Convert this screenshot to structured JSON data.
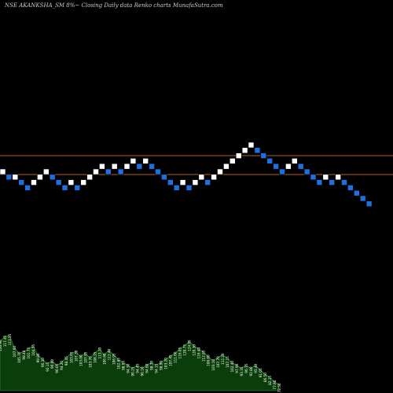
{
  "colors": {
    "background": "#000000",
    "up_brick": "#ffffff",
    "down_brick": "#1e6fe0",
    "reference_line": "#b5651d",
    "volume_fill": "#0b3d0b",
    "volume_stroke": "#33aa33",
    "label_text": "#ffffff"
  },
  "chart_data": {
    "type": "renko",
    "title": "NSE AKANKSHA_SM 8%~  Closing Daily data  Renko  charts MunafaSutra.com",
    "xlabel": "",
    "ylabel": "",
    "grid": false,
    "reference_lines": [
      1.0,
      0.0
    ],
    "bricks": [
      {
        "level": 0,
        "dir": "up"
      },
      {
        "level": -1,
        "dir": "down"
      },
      {
        "level": -1,
        "dir": "up"
      },
      {
        "level": -2,
        "dir": "down"
      },
      {
        "level": -3,
        "dir": "down"
      },
      {
        "level": -2,
        "dir": "up"
      },
      {
        "level": -1,
        "dir": "up"
      },
      {
        "level": 0,
        "dir": "up"
      },
      {
        "level": -1,
        "dir": "down"
      },
      {
        "level": -2,
        "dir": "down"
      },
      {
        "level": -3,
        "dir": "down"
      },
      {
        "level": -2,
        "dir": "up"
      },
      {
        "level": -3,
        "dir": "down"
      },
      {
        "level": -2,
        "dir": "up"
      },
      {
        "level": -1,
        "dir": "up"
      },
      {
        "level": 0,
        "dir": "up"
      },
      {
        "level": 1,
        "dir": "up"
      },
      {
        "level": 0,
        "dir": "down"
      },
      {
        "level": 1,
        "dir": "up"
      },
      {
        "level": 0,
        "dir": "down"
      },
      {
        "level": 1,
        "dir": "up"
      },
      {
        "level": 2,
        "dir": "up"
      },
      {
        "level": 1,
        "dir": "down"
      },
      {
        "level": 2,
        "dir": "up"
      },
      {
        "level": 1,
        "dir": "down"
      },
      {
        "level": 0,
        "dir": "down"
      },
      {
        "level": -1,
        "dir": "down"
      },
      {
        "level": -2,
        "dir": "down"
      },
      {
        "level": -3,
        "dir": "down"
      },
      {
        "level": -2,
        "dir": "up"
      },
      {
        "level": -3,
        "dir": "down"
      },
      {
        "level": -2,
        "dir": "up"
      },
      {
        "level": -1,
        "dir": "up"
      },
      {
        "level": -2,
        "dir": "down"
      },
      {
        "level": -1,
        "dir": "up"
      },
      {
        "level": 0,
        "dir": "up"
      },
      {
        "level": 1,
        "dir": "up"
      },
      {
        "level": 2,
        "dir": "up"
      },
      {
        "level": 3,
        "dir": "up"
      },
      {
        "level": 4,
        "dir": "up"
      },
      {
        "level": 5,
        "dir": "up"
      },
      {
        "level": 4,
        "dir": "down"
      },
      {
        "level": 3,
        "dir": "down"
      },
      {
        "level": 2,
        "dir": "down"
      },
      {
        "level": 1,
        "dir": "down"
      },
      {
        "level": 0,
        "dir": "down"
      },
      {
        "level": 1,
        "dir": "up"
      },
      {
        "level": 2,
        "dir": "up"
      },
      {
        "level": 1,
        "dir": "down"
      },
      {
        "level": 0,
        "dir": "down"
      },
      {
        "level": -1,
        "dir": "down"
      },
      {
        "level": -2,
        "dir": "down"
      },
      {
        "level": -1,
        "dir": "up"
      },
      {
        "level": -2,
        "dir": "down"
      },
      {
        "level": -1,
        "dir": "up"
      },
      {
        "level": -2,
        "dir": "down"
      },
      {
        "level": -3,
        "dir": "down"
      },
      {
        "level": -4,
        "dir": "down"
      },
      {
        "level": -5,
        "dir": "down"
      },
      {
        "level": -6,
        "dir": "down"
      }
    ],
    "volume": [
      {
        "value": 0.66,
        "label": "120.90"
      },
      {
        "value": 0.72,
        "label": "117.45"
      },
      {
        "value": 0.74,
        "label": "113.55"
      },
      {
        "value": 0.58,
        "label": "107.60"
      },
      {
        "value": 0.5,
        "label": "105.70"
      },
      {
        "value": 0.52,
        "label": "98.40"
      },
      {
        "value": 0.56,
        "label": "101.75"
      },
      {
        "value": 0.6,
        "label": "104.55"
      },
      {
        "value": 0.48,
        "label": "99.80"
      },
      {
        "value": 0.42,
        "label": "96.30"
      },
      {
        "value": 0.36,
        "label": "92.15"
      },
      {
        "value": 0.4,
        "label": "96.00"
      },
      {
        "value": 0.34,
        "label": "90.05"
      },
      {
        "value": 0.38,
        "label": "94.20"
      },
      {
        "value": 0.44,
        "label": "98.45"
      },
      {
        "value": 0.5,
        "label": "103.65"
      },
      {
        "value": 0.52,
        "label": "107.30"
      },
      {
        "value": 0.46,
        "label": "103.00"
      },
      {
        "value": 0.5,
        "label": "107.95"
      },
      {
        "value": 0.44,
        "label": "103.70"
      },
      {
        "value": 0.5,
        "label": "108.25"
      },
      {
        "value": 0.56,
        "label": "113.10"
      },
      {
        "value": 0.48,
        "label": "106.80"
      },
      {
        "value": 0.54,
        "label": "112.40"
      },
      {
        "value": 0.48,
        "label": "106.95"
      },
      {
        "value": 0.42,
        "label": "102.85"
      },
      {
        "value": 0.38,
        "label": "98.65"
      },
      {
        "value": 0.34,
        "label": "94.30"
      },
      {
        "value": 0.3,
        "label": "90.25"
      },
      {
        "value": 0.34,
        "label": "94.45"
      },
      {
        "value": 0.3,
        "label": "90.10"
      },
      {
        "value": 0.34,
        "label": "94.60"
      },
      {
        "value": 0.38,
        "label": "98.70"
      },
      {
        "value": 0.34,
        "label": "94.15"
      },
      {
        "value": 0.38,
        "label": "98.90"
      },
      {
        "value": 0.42,
        "label": "103.20"
      },
      {
        "value": 0.46,
        "label": "107.45"
      },
      {
        "value": 0.5,
        "label": "111.60"
      },
      {
        "value": 0.56,
        "label": "116.05"
      },
      {
        "value": 0.6,
        "label": "120.75"
      },
      {
        "value": 0.66,
        "label": "124.95"
      },
      {
        "value": 0.6,
        "label": "120.30"
      },
      {
        "value": 0.56,
        "label": "116.40"
      },
      {
        "value": 0.52,
        "label": "112.85"
      },
      {
        "value": 0.46,
        "label": "108.00"
      },
      {
        "value": 0.4,
        "label": "103.10"
      },
      {
        "value": 0.44,
        "label": "107.70"
      },
      {
        "value": 0.48,
        "label": "112.20"
      },
      {
        "value": 0.44,
        "label": "107.15"
      },
      {
        "value": 0.38,
        "label": "102.40"
      },
      {
        "value": 0.34,
        "label": "97.90"
      },
      {
        "value": 0.3,
        "label": "93.35"
      },
      {
        "value": 0.34,
        "label": "96.75"
      },
      {
        "value": 0.3,
        "label": "92.80"
      },
      {
        "value": 0.34,
        "label": "95.40"
      },
      {
        "value": 0.28,
        "label": "91.05"
      },
      {
        "value": 0.22,
        "label": "86.50"
      },
      {
        "value": 0.18,
        "label": "82.15"
      },
      {
        "value": 0.12,
        "label": "77.90"
      },
      {
        "value": 0.08,
        "label": "72.50"
      }
    ]
  }
}
